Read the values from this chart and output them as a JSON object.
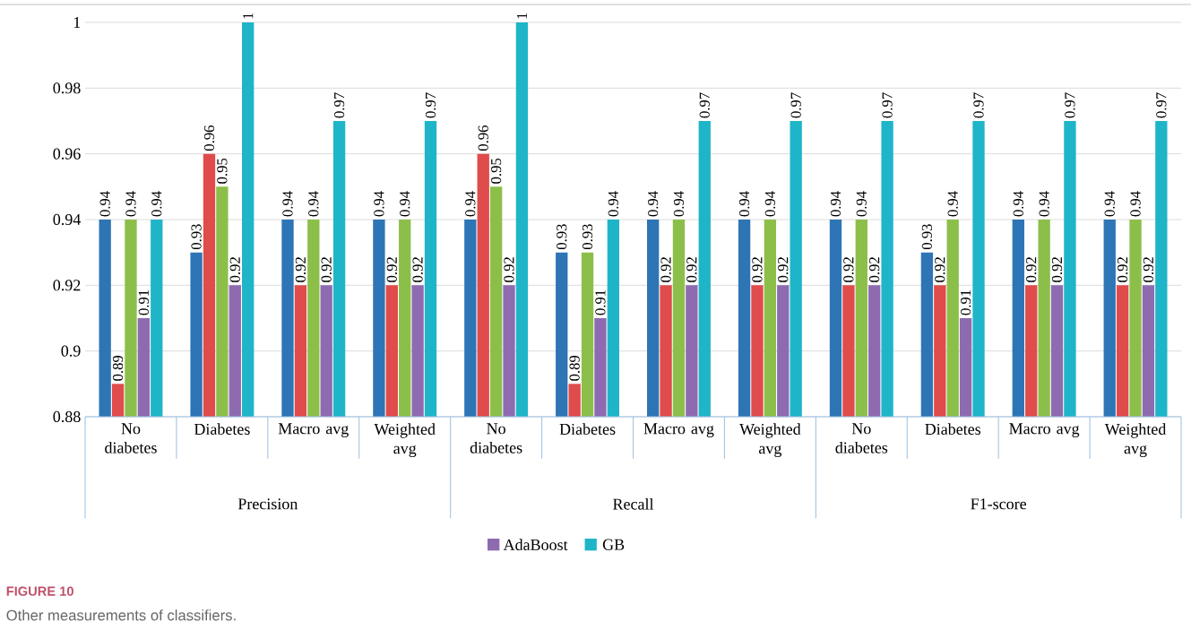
{
  "chart_data": {
    "type": "bar",
    "categories": [
      "No diabetes",
      "Diabetes",
      "Macro avg",
      "Weighted avg",
      "No diabetes",
      "Diabetes",
      "Macro avg",
      "Weighted avg",
      "No diabetes",
      "Diabetes",
      "Macro avg",
      "Weighted avg"
    ],
    "series": [
      {
        "color": "#2e75b6",
        "values": [
          0.94,
          0.93,
          0.94,
          0.94,
          0.94,
          0.93,
          0.94,
          0.94,
          0.94,
          0.93,
          0.94,
          0.94
        ]
      },
      {
        "color": "#e04b4b",
        "values": [
          0.89,
          0.96,
          0.92,
          0.92,
          0.96,
          0.89,
          0.92,
          0.92,
          0.92,
          0.92,
          0.92,
          0.92
        ]
      },
      {
        "color": "#8cbf4a",
        "values": [
          0.94,
          0.95,
          0.94,
          0.94,
          0.95,
          0.93,
          0.94,
          0.94,
          0.94,
          0.94,
          0.94,
          0.94
        ]
      },
      {
        "name": "AdaBoost",
        "color": "#8e6bb0",
        "values": [
          0.91,
          0.92,
          0.92,
          0.92,
          0.92,
          0.91,
          0.92,
          0.92,
          0.92,
          0.91,
          0.92,
          0.92
        ]
      },
      {
        "name": "GB",
        "color": "#1fb5c9",
        "values": [
          0.94,
          1,
          0.97,
          0.97,
          1,
          0.94,
          0.97,
          0.97,
          0.97,
          0.97,
          0.97,
          0.97
        ]
      }
    ],
    "ylim": [
      0.88,
      1
    ],
    "yticks": [
      0.88,
      0.9,
      0.92,
      0.94,
      0.96,
      0.98,
      1
    ],
    "grid": "y",
    "legend": "bottom",
    "data_labels": true,
    "annotations": [
      "Precision",
      "Recall",
      "F1-score",
      "FIGURE 10",
      "Other measurements of classifiers."
    ]
  }
}
